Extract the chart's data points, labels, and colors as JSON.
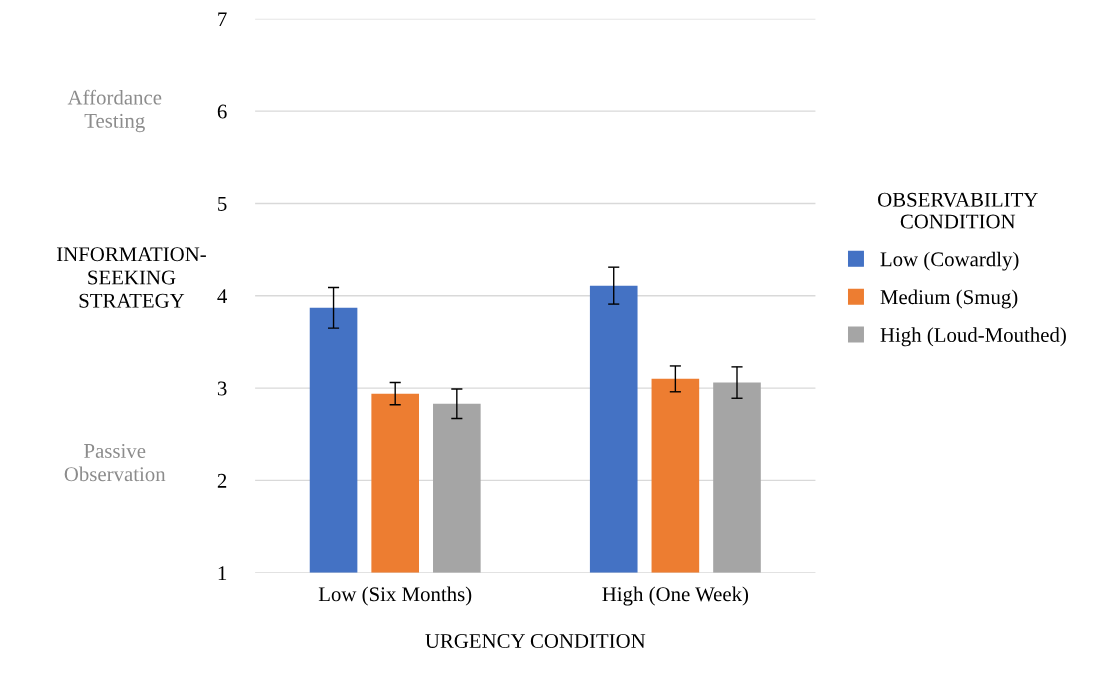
{
  "chart_data": {
    "type": "bar",
    "categories": [
      "Low (Six Months)",
      "High (One Week)"
    ],
    "series": [
      {
        "name": "Low (Cowardly)",
        "color": "#4472c4",
        "values": [
          3.87,
          4.11
        ],
        "errors": [
          0.22,
          0.2
        ]
      },
      {
        "name": "Medium (Smug)",
        "color": "#ed7d31",
        "values": [
          2.94,
          3.1
        ],
        "errors": [
          0.12,
          0.14
        ]
      },
      {
        "name": "High (Loud-Mouthed)",
        "color": "#a5a5a5",
        "values": [
          2.83,
          3.06
        ],
        "errors": [
          0.16,
          0.17
        ]
      }
    ],
    "xlabel": "URGENCY CONDITION",
    "ylabel": "INFORMATION-\nSEEKING\nSTRATEGY",
    "legend_title": "OBSERVABILITY\nCONDITION",
    "legend": "right",
    "annotations": [
      "Affordance\nTesting",
      "Passive\nObservation"
    ],
    "ylim": [
      1,
      7
    ],
    "yticks": [
      1,
      2,
      3,
      4,
      5,
      6,
      7
    ],
    "grid": "y"
  }
}
